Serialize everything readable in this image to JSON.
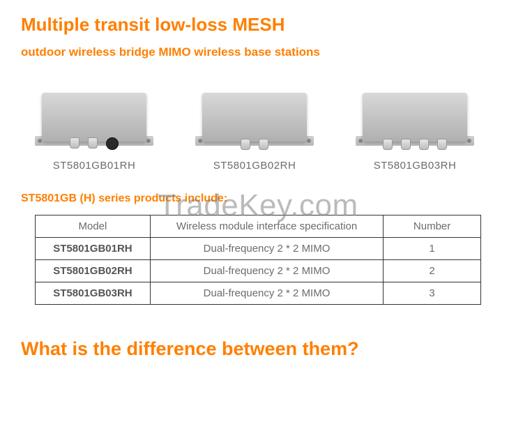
{
  "title": "Multiple transit low-loss MESH",
  "subtitle": "outdoor wireless bridge MIMO wireless base stations",
  "products": [
    {
      "label": "ST5801GB01RH",
      "connectors": 2,
      "has_black_port": true
    },
    {
      "label": "ST5801GB02RH",
      "connectors": 2,
      "has_black_port": false
    },
    {
      "label": "ST5801GB03RH",
      "connectors": 4,
      "has_black_port": false
    }
  ],
  "watermark": "TradeKey.com",
  "section_label": "ST5801GB (H) series products include:",
  "table": {
    "columns": [
      "Model",
      "Wireless module interface specification",
      "Number"
    ],
    "rows": [
      [
        "ST5801GB01RH",
        "Dual-frequency 2 * 2 MIMO",
        "1"
      ],
      [
        "ST5801GB02RH",
        "Dual-frequency 2 * 2 MIMO",
        "2"
      ],
      [
        "ST5801GB03RH",
        "Dual-frequency 2 * 2 MIMO",
        "3"
      ]
    ]
  },
  "bottom_title": "What is the difference between them?",
  "colors": {
    "accent": "#ff7f00",
    "text_muted": "#6b6b6b",
    "border": "#333333",
    "background": "#ffffff"
  }
}
